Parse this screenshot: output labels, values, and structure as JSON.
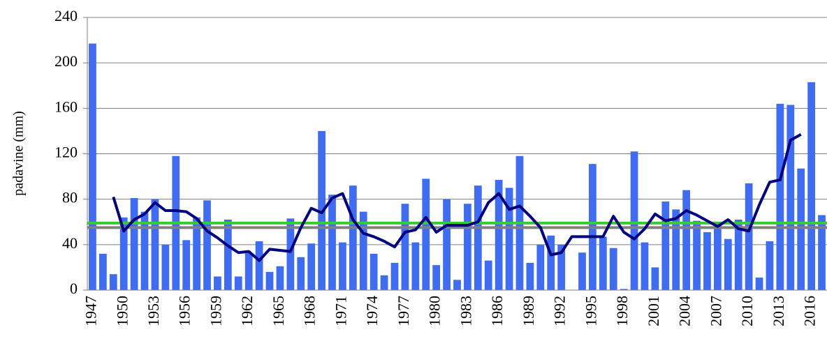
{
  "chart_data": {
    "type": "bar",
    "ylabel": "padavine (mm)",
    "categories": [
      "1947",
      null,
      null,
      "1950",
      null,
      null,
      "1953",
      null,
      null,
      "1956",
      null,
      null,
      "1959",
      null,
      null,
      "1962",
      null,
      null,
      "1965",
      null,
      null,
      "1968",
      null,
      null,
      "1971",
      null,
      null,
      "1974",
      null,
      null,
      "1977",
      null,
      null,
      "1980",
      null,
      null,
      "1983",
      null,
      null,
      "1986",
      null,
      null,
      "1989",
      null,
      null,
      "1992",
      null,
      null,
      "1995",
      null,
      null,
      "1998",
      null,
      null,
      "2001",
      null,
      null,
      "2004",
      null,
      null,
      "2007",
      null,
      null,
      "2010",
      null,
      null,
      "2013",
      null,
      null,
      "2016",
      null
    ],
    "series": [
      {
        "type": "bar",
        "color": "#3f6cf5",
        "values": [
          217,
          32,
          14,
          64,
          81,
          69,
          80,
          40,
          118,
          44,
          64,
          79,
          12,
          62,
          12,
          33,
          43,
          16,
          21,
          63,
          29,
          41,
          140,
          84,
          42,
          92,
          69,
          32,
          13,
          24,
          76,
          42,
          98,
          22,
          80,
          9,
          76,
          92,
          26,
          97,
          90,
          118,
          24,
          40,
          48,
          40,
          0,
          33,
          111,
          47,
          37,
          1,
          122,
          42,
          20,
          78,
          71,
          88,
          61,
          51,
          58,
          45,
          62,
          94,
          11,
          43,
          164,
          163,
          107,
          183,
          66
        ]
      },
      {
        "type": "line",
        "color": "#000080",
        "values": [
          null,
          null,
          82,
          52,
          62,
          67,
          77,
          70,
          70,
          69,
          63,
          52,
          46,
          39,
          33,
          34,
          26,
          36,
          35,
          34,
          55,
          72,
          68,
          81,
          85,
          62,
          50,
          47,
          43,
          38,
          51,
          53,
          64,
          51,
          57,
          57,
          57,
          60,
          77,
          85,
          71,
          74,
          65,
          55,
          31,
          33,
          47,
          47,
          47,
          47,
          65,
          51,
          45,
          54,
          67,
          61,
          63,
          70,
          66,
          61,
          56,
          62,
          54,
          52,
          75,
          95,
          97,
          132,
          137,
          null,
          null
        ]
      }
    ],
    "hlines": [
      {
        "value": 59,
        "color": "#33cc33"
      },
      {
        "value": 55,
        "color": "#808080"
      }
    ],
    "ylim": [
      0,
      240
    ],
    "yticks": [
      0,
      40,
      80,
      120,
      160,
      200,
      240
    ],
    "grid": true
  }
}
